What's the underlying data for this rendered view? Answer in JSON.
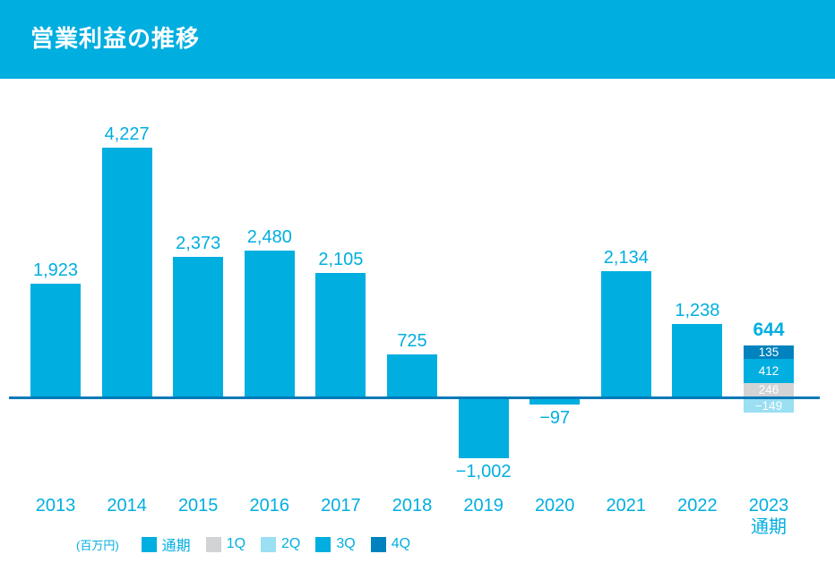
{
  "header": {
    "title": "営業利益の推移"
  },
  "chart_data": {
    "type": "bar",
    "title": "営業利益の推移",
    "unit_label": "(百万円)",
    "xlabel": "",
    "ylabel": "営業利益 (百万円)",
    "ylim": [
      -1100,
      4500
    ],
    "grid": false,
    "legend_position": "bottom",
    "categories": [
      "2013",
      "2014",
      "2015",
      "2016",
      "2017",
      "2018",
      "2019",
      "2020",
      "2021",
      "2022",
      "2023 通期"
    ],
    "bars": [
      {
        "year": "2013",
        "total": 1923
      },
      {
        "year": "2014",
        "total": 4227
      },
      {
        "year": "2015",
        "total": 2373
      },
      {
        "year": "2016",
        "total": 2480
      },
      {
        "year": "2017",
        "total": 2105
      },
      {
        "year": "2018",
        "total": 725
      },
      {
        "year": "2019",
        "total": -1002
      },
      {
        "year": "2020",
        "total": -97
      },
      {
        "year": "2021",
        "total": 2134
      },
      {
        "year": "2022",
        "total": 1238
      },
      {
        "year": "2023",
        "year_line2": "通期",
        "total": 644,
        "segments": [
          {
            "name": "4Q",
            "value": 135,
            "color_key": "q4"
          },
          {
            "name": "3Q",
            "value": 412,
            "color_key": "q3"
          },
          {
            "name": "1Q",
            "value": 246,
            "color_key": "q1"
          },
          {
            "name": "2Q",
            "value": -149,
            "color_key": "q2"
          }
        ]
      }
    ],
    "legend": [
      {
        "label": "通期",
        "color_key": "full_year"
      },
      {
        "label": "1Q",
        "color_key": "q1"
      },
      {
        "label": "2Q",
        "color_key": "q2"
      },
      {
        "label": "3Q",
        "color_key": "q3"
      },
      {
        "label": "4Q",
        "color_key": "q4"
      }
    ]
  },
  "colors": {
    "header_bg": "#00AEE0",
    "title_text": "#FFFFFF",
    "full_year": "#00AEE0",
    "q1": "#D2D3D5",
    "q2": "#9ADFF2",
    "q3": "#00AEE0",
    "q4": "#0082BE",
    "axis_line": "#0079B8",
    "label_text": "#00AEE0",
    "segment_text": "#FFFFFF"
  }
}
